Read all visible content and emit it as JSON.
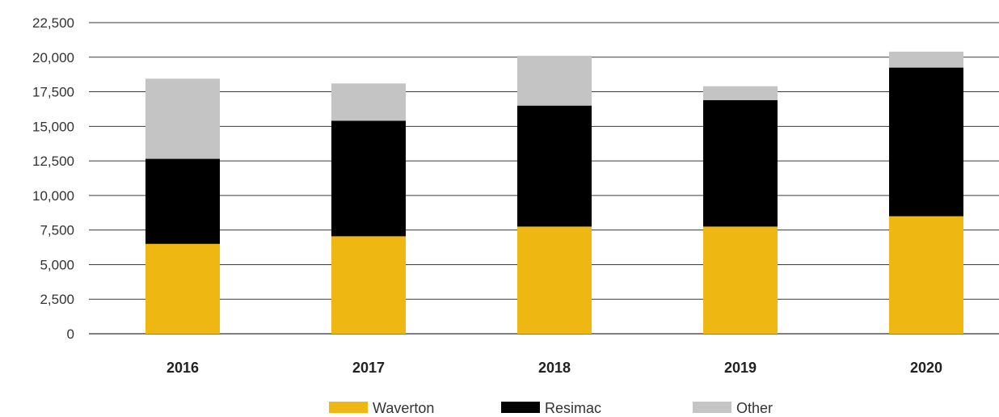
{
  "chart_data": {
    "type": "bar",
    "stacked": true,
    "categories": [
      "2016",
      "2017",
      "2018",
      "2019",
      "2020"
    ],
    "series": [
      {
        "name": "Waverton",
        "color": "#EFB711",
        "values": [
          6500,
          7050,
          7750,
          7750,
          8500
        ]
      },
      {
        "name": "Resimac",
        "color": "#000000",
        "values": [
          6150,
          8350,
          8750,
          9150,
          10750
        ]
      },
      {
        "name": "Other",
        "color": "#C4C4C4",
        "values": [
          5800,
          2700,
          3600,
          1000,
          1150
        ]
      }
    ],
    "ylim": [
      0,
      22500
    ],
    "yticks": [
      "0",
      "2,500",
      "5,000",
      "7,500",
      "10,000",
      "12,500",
      "15,000",
      "17,500",
      "20,000",
      "22,500"
    ],
    "ytick_values": [
      0,
      2500,
      5000,
      7500,
      10000,
      12500,
      15000,
      17500,
      20000,
      22500
    ],
    "grid": true,
    "legend_position": "bottom",
    "title": "",
    "xlabel": "",
    "ylabel": ""
  }
}
